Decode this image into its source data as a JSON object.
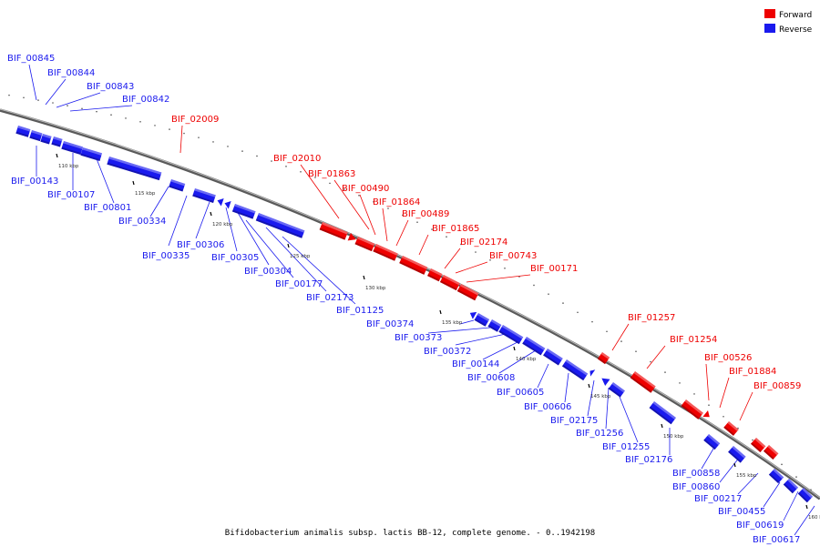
{
  "legend": [
    {
      "label": "Forward",
      "color": "#ee0000"
    },
    {
      "label": "Reverse",
      "color": "#1a1aee"
    }
  ],
  "caption": "Bifidobacterium animalis subsp. lactis BB-12, complete genome. - 0..1942198",
  "colors": {
    "forward": "#ee0000",
    "reverse": "#1a1aee",
    "backbone": "#888888"
  },
  "ticks": [
    "110 kbp",
    "115 kbp",
    "120 kbp",
    "125 kbp",
    "130 kbp",
    "135 kbp",
    "140 kbp",
    "145 kbp",
    "150 kbp",
    "155 kbp",
    "160 kbp"
  ],
  "forward_labels": [
    "BIF_02009",
    "BIF_02010",
    "BIF_01863",
    "BIF_00490",
    "BIF_01864",
    "BIF_00489",
    "BIF_01865",
    "BIF_02174",
    "BIF_00743",
    "BIF_00171",
    "BIF_01257",
    "BIF_01254",
    "BIF_00526",
    "BIF_01884",
    "BIF_00859"
  ],
  "reverse_top_labels": [
    "BIF_00845",
    "BIF_00844",
    "BIF_00843",
    "BIF_00842"
  ],
  "reverse_labels": [
    "BIF_00143",
    "BIF_00107",
    "BIF_00801",
    "BIF_00334",
    "BIF_00335",
    "BIF_00306",
    "BIF_00305",
    "BIF_00304",
    "BIF_00177",
    "BIF_02173",
    "BIF_01125",
    "BIF_00374",
    "BIF_00373",
    "BIF_00372",
    "BIF_00144",
    "BIF_00608",
    "BIF_00605",
    "BIF_00606",
    "BIF_02175",
    "BIF_01256",
    "BIF_01255",
    "BIF_02176",
    "BIF_00858",
    "BIF_00860",
    "BIF_00217",
    "BIF_00455",
    "BIF_00619",
    "BIF_00617"
  ]
}
